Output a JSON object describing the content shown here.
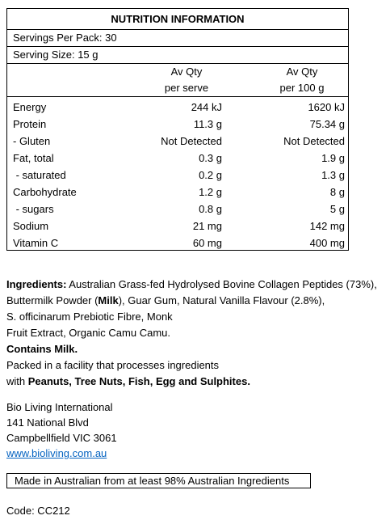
{
  "panel": {
    "title": "NUTRITION INFORMATION",
    "servings_per_pack": "Servings Per Pack: 30",
    "serving_size": "Serving Size: 15 g",
    "header": {
      "col1_line1": "Av Qty",
      "col1_line2": "per serve",
      "col2_line1": "Av Qty",
      "col2_line2": "per 100 g"
    },
    "rows": [
      {
        "label": "Energy",
        "per_serve": "244 kJ",
        "per_100g": "1620 kJ"
      },
      {
        "label": "Protein",
        "per_serve": "11.3 g",
        "per_100g": "75.34 g"
      },
      {
        "label": "- Gluten",
        "per_serve": "Not Detected",
        "per_100g": "Not Detected"
      },
      {
        "label": "Fat, total",
        "per_serve": "0.3 g",
        "per_100g": "1.9 g"
      },
      {
        "label": " - saturated",
        "per_serve": "0.2 g",
        "per_100g": "1.3 g"
      },
      {
        "label": "Carbohydrate",
        "per_serve": "1.2 g",
        "per_100g": "8 g"
      },
      {
        "label": " - sugars",
        "per_serve": "0.8 g",
        "per_100g": "5 g"
      },
      {
        "label": "Sodium",
        "per_serve": "21 mg",
        "per_100g": "142 mg"
      },
      {
        "label": "Vitamin C",
        "per_serve": "60 mg",
        "per_100g": "400 mg"
      }
    ]
  },
  "ingredients": {
    "label": "Ingredients:",
    "line1": " Australian Grass-fed Hydrolysed Bovine Collagen Peptides (73%),",
    "line2_a": "Buttermilk Powder (",
    "line2_bold": "Milk",
    "line2_b": "), Guar Gum, Natural Vanilla Flavour (2.8%),",
    "line3": "S. officinarum Prebiotic Fibre, Monk",
    "line4": "Fruit Extract, Organic Camu Camu.",
    "contains": "Contains Milk.",
    "facility_line1": "Packed in a facility that processes ingredients",
    "facility_line2_a": "with ",
    "facility_line2_bold": "Peanuts, Tree Nuts, Fish, Egg and Sulphites."
  },
  "company": {
    "name": "Bio Living International",
    "street": "141 National Blvd",
    "city": "Campbellfield VIC 3061",
    "website": "www.bioliving.com.au"
  },
  "origin_statement": "Made in Australian from at least 98% Australian Ingredients",
  "code": "Code: CC212"
}
